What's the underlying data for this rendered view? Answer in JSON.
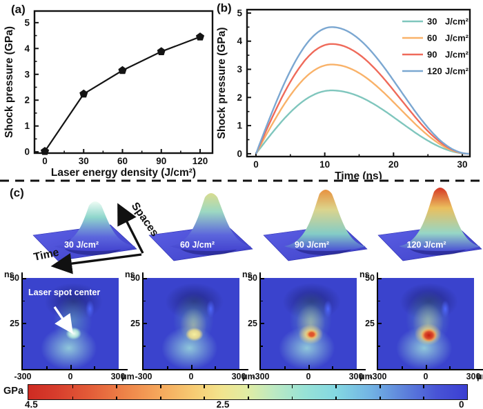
{
  "panel_a": {
    "tag": "(a)"
  },
  "panel_b": {
    "tag": "(b)"
  },
  "chart_data": [
    {
      "id": "panel_a",
      "type": "line",
      "title": "",
      "xlabel": "Laser energy density (J/cm²)",
      "ylabel": "Shock pressure (GPa)",
      "x": [
        0,
        30,
        60,
        90,
        120
      ],
      "y": [
        0.02,
        2.24,
        3.15,
        3.88,
        4.45
      ],
      "xticks": [
        0,
        30,
        60,
        90,
        120
      ],
      "xminor": [
        15,
        45,
        75,
        105
      ],
      "yticks": [
        0,
        1,
        2,
        3,
        4,
        5
      ],
      "yminor": [
        0.5,
        1.5,
        2.5,
        3.5,
        4.5
      ],
      "xlim": [
        -8,
        129.6
      ],
      "ylim": [
        -0.05,
        5.45
      ],
      "marker": "pentagon",
      "line_color": "#141414",
      "grid": false
    },
    {
      "id": "panel_b",
      "type": "line",
      "title": "",
      "xlabel": "Time (ns)",
      "ylabel": "Shock pressure (GPa)",
      "xticks": [
        0,
        10,
        20,
        30
      ],
      "xminor": [
        5,
        15,
        25
      ],
      "yticks": [
        0,
        1,
        2,
        3,
        4,
        5
      ],
      "yminor": [
        0.5,
        1.5,
        2.5,
        3.5,
        4.5
      ],
      "xlim": [
        -1.3,
        31.1
      ],
      "ylim": [
        -0.1,
        5.12
      ],
      "t_peak": 11,
      "t_end": 31,
      "legend_position": "top-right",
      "grid": false,
      "series": [
        {
          "label": "30",
          "unit": "J/cm²",
          "peak": 2.25,
          "color": "#7fc6bd"
        },
        {
          "label": "60",
          "unit": "J/cm²",
          "peak": 3.17,
          "color": "#f9b269"
        },
        {
          "label": "90",
          "unit": "J/cm²",
          "peak": 3.9,
          "color": "#ef6a5a"
        },
        {
          "label": "120",
          "unit": "J/cm²",
          "peak": 4.5,
          "color": "#7ba7d1"
        }
      ]
    },
    {
      "id": "panel_c_maps",
      "type": "heatmap",
      "xlabel": "μm",
      "ylabel": "ns",
      "xlim": [
        -300,
        300
      ],
      "ylim": [
        0,
        50
      ],
      "colorbar": {
        "unit": "GPa",
        "min": 0,
        "max": 4.5,
        "mid_label": 2.5
      },
      "panels": [
        "30 J/cm²",
        "60 J/cm²",
        "90 J/cm²",
        "120 J/cm²"
      ],
      "annotation": "Laser spot center"
    }
  ],
  "panel_c": {
    "label": "(c)",
    "axis_arrows": {
      "space_label": "Spaces",
      "time_label": "Time"
    },
    "surfaces": [
      {
        "label": "30 J/cm²",
        "apex": 24,
        "stops": [
          "#eefcf4",
          "#8fd6cc",
          "#5c66dc",
          "#4343cf"
        ]
      },
      {
        "label": "60 J/cm²",
        "apex": 12,
        "stops": [
          "#d8dc90",
          "#9cd8c2",
          "#5c66dc",
          "#4343cf"
        ]
      },
      {
        "label": "90 J/cm²",
        "apex": 7,
        "stops": [
          "#e8923f",
          "#dcd48c",
          "#84ccc6",
          "#4a50d4"
        ]
      },
      {
        "label": "120 J/cm²",
        "apex": 4,
        "stops": [
          "#d63826",
          "#eabf5e",
          "#96d6c6",
          "#4a50d4"
        ]
      }
    ],
    "heatmaps": {
      "y_unit": "ns",
      "x_unit": "μm",
      "yticks": [
        "50",
        "25"
      ],
      "xticks": [
        "-300",
        "0",
        "300"
      ],
      "annotation": "Laser spot center",
      "background": "#3a43cd",
      "core_colors": [
        "#f2fff6",
        "#f6ef9e",
        "#e04f28",
        "#c61d10"
      ]
    },
    "colorbar": {
      "unit": "GPa",
      "labels": [
        "4.5",
        "2.5",
        "0"
      ],
      "stops": [
        "0% #ce2b22",
        "6% #d63c2c",
        "14% #e35c38",
        "22% #ee8348",
        "30% #f5a85c",
        "38% #f7cd74",
        "44% #f2e48e",
        "50% #e0eda4",
        "56% #bce9c2",
        "63% #97e2d6",
        "70% #84d8e2",
        "78% #72b4e4",
        "85% #5f86dc",
        "93% #4854d6",
        "100% #3b3fd2"
      ]
    }
  }
}
